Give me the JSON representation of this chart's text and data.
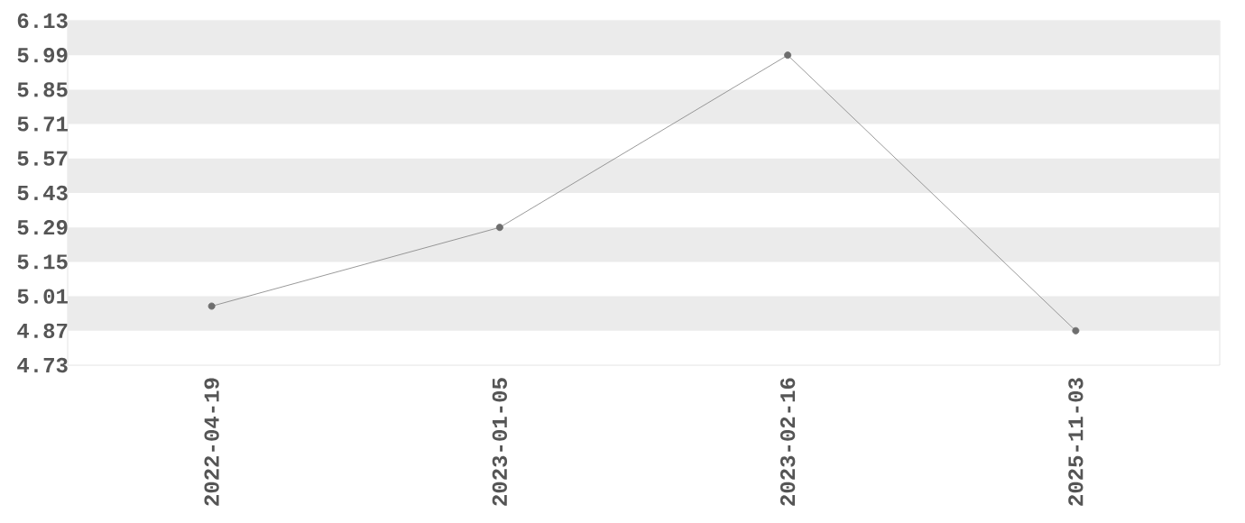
{
  "chart_data": {
    "type": "line",
    "categories": [
      "2022-04-19",
      "2023-01-05",
      "2023-02-16",
      "2025-11-03"
    ],
    "series": [
      {
        "color": "#808080",
        "values": [
          4.97,
          5.29,
          5.99,
          4.87
        ]
      }
    ],
    "ylim": [
      4.73,
      6.13
    ],
    "yticks": [
      4.73,
      4.87,
      5.01,
      5.15,
      5.29,
      5.43,
      5.57,
      5.71,
      5.85,
      5.99,
      6.13
    ],
    "bands": [
      {
        "axis": "y",
        "from": 4.87,
        "to": 5.01,
        "color": "#ebebeb"
      },
      {
        "axis": "y",
        "from": 5.15,
        "to": 5.29,
        "color": "#ebebeb"
      },
      {
        "axis": "y",
        "from": 5.43,
        "to": 5.57,
        "color": "#ebebeb"
      },
      {
        "axis": "y",
        "from": 5.71,
        "to": 5.85,
        "color": "#ebebeb"
      },
      {
        "axis": "y",
        "from": 5.99,
        "to": 6.13,
        "color": "#ebebeb"
      }
    ],
    "marker": "circle",
    "line_style": "solid"
  }
}
